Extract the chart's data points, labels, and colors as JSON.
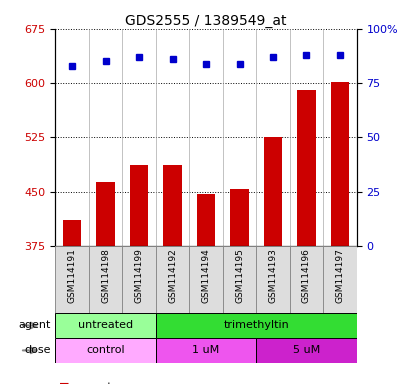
{
  "title": "GDS2555 / 1389549_at",
  "samples": [
    "GSM114191",
    "GSM114198",
    "GSM114199",
    "GSM114192",
    "GSM114194",
    "GSM114195",
    "GSM114193",
    "GSM114196",
    "GSM114197"
  ],
  "bar_values": [
    410,
    463,
    487,
    487,
    447,
    453,
    526,
    591,
    602
  ],
  "percentile_values": [
    83,
    85,
    87,
    86,
    84,
    84,
    87,
    88,
    88
  ],
  "bar_color": "#cc0000",
  "dot_color": "#0000cc",
  "ylim_left": [
    375,
    675
  ],
  "ylim_right": [
    0,
    100
  ],
  "yticks_left": [
    375,
    450,
    525,
    600,
    675
  ],
  "yticks_right": [
    0,
    25,
    50,
    75,
    100
  ],
  "agent_labels": [
    {
      "text": "untreated",
      "start": 0,
      "end": 3,
      "color": "#99ff99"
    },
    {
      "text": "trimethyltin",
      "start": 3,
      "end": 9,
      "color": "#33dd33"
    }
  ],
  "dose_labels": [
    {
      "text": "control",
      "start": 0,
      "end": 3,
      "color": "#ffaaff"
    },
    {
      "text": "1 uM",
      "start": 3,
      "end": 6,
      "color": "#ee55ee"
    },
    {
      "text": "5 uM",
      "start": 6,
      "end": 9,
      "color": "#cc22cc"
    }
  ],
  "legend_count_color": "#cc0000",
  "legend_dot_color": "#0000cc",
  "background_color": "#ffffff",
  "left_axis_color": "#cc0000",
  "right_axis_color": "#0000cc"
}
